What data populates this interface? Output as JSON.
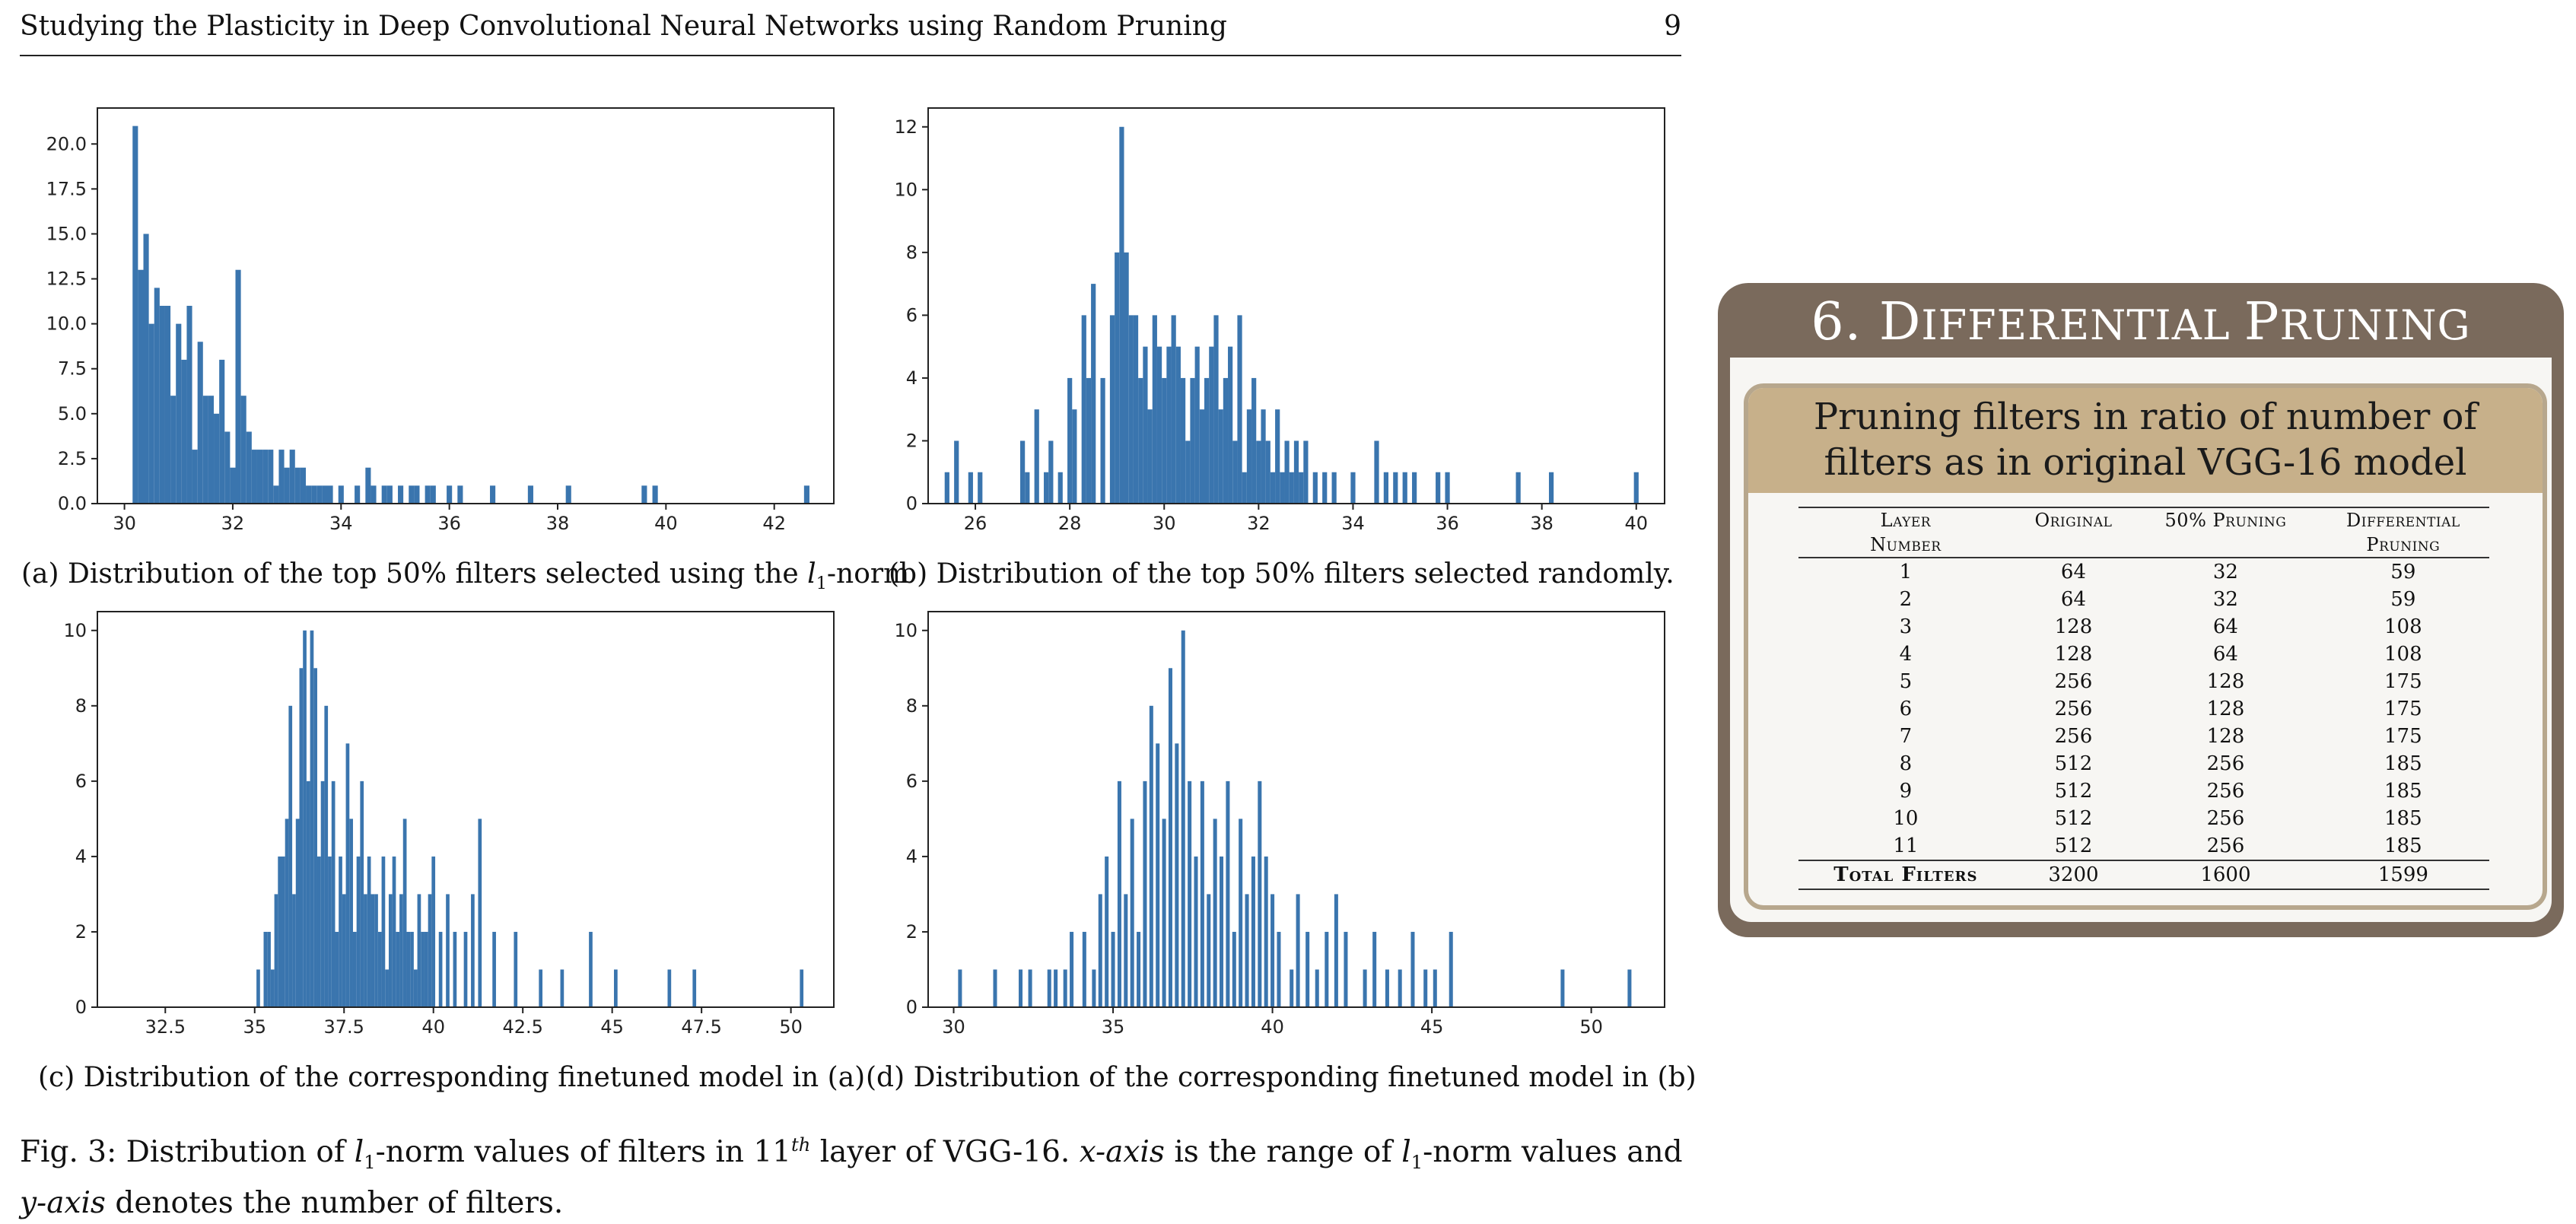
{
  "header": {
    "title": "Studying the Plasticity in Deep Convolutional Neural Networks using Random Pruning",
    "page_number": "9"
  },
  "captions": {
    "a_pre": "(a) Distribution of the top 50% filters selected using the ",
    "a_var": "l",
    "a_sub": "1",
    "a_post": "-norm",
    "b": "(b) Distribution of the top 50% filters selected randomly.",
    "c": "(c) Distribution of the corresponding finetuned model in (a)",
    "d": "(d) Distribution of the corresponding finetuned model in (b)"
  },
  "figure_caption": {
    "p1": "Fig. 3: Distribution of ",
    "l": "l",
    "one": "1",
    "p2": "-norm values of filters in 11",
    "th": "th",
    "p3": " layer of VGG-16. ",
    "xaxis": "x-axis",
    "p4": " is the range of ",
    "p5": "-norm values and ",
    "yaxis": "y-axis",
    "p6": " denotes the number of filters."
  },
  "chart_data": [
    {
      "id": "a",
      "type": "bar",
      "color": "#3a75ae",
      "xlim": [
        29.5,
        43.1
      ],
      "ylim": [
        0,
        22
      ],
      "xticks": [
        30,
        32,
        34,
        36,
        38,
        40,
        42
      ],
      "yticks": [
        0.0,
        2.5,
        5.0,
        7.5,
        10.0,
        12.5,
        15.0,
        17.5,
        20.0
      ],
      "ytick_labels": [
        "0.0",
        "2.5",
        "5.0",
        "7.5",
        "10.0",
        "12.5",
        "15.0",
        "17.5",
        "20.0"
      ],
      "bar_width": 0.1,
      "x": [
        30.2,
        30.3,
        30.4,
        30.5,
        30.6,
        30.7,
        30.8,
        30.9,
        31.0,
        31.1,
        31.2,
        31.3,
        31.4,
        31.5,
        31.6,
        31.7,
        31.8,
        31.9,
        32.0,
        32.1,
        32.2,
        32.3,
        32.4,
        32.5,
        32.6,
        32.7,
        32.8,
        32.9,
        33.0,
        33.1,
        33.2,
        33.3,
        33.4,
        33.5,
        33.6,
        33.7,
        33.8,
        34.0,
        34.3,
        34.5,
        34.6,
        34.8,
        34.9,
        35.1,
        35.3,
        35.4,
        35.6,
        35.7,
        36.0,
        36.2,
        36.8,
        37.5,
        38.2,
        39.6,
        39.8,
        42.6
      ],
      "values": [
        21,
        13,
        15,
        10,
        12,
        11,
        11,
        6,
        10,
        8,
        11,
        3,
        9,
        6,
        6,
        5,
        8,
        4,
        2,
        13,
        6,
        4,
        3,
        3,
        3,
        3,
        1,
        3,
        2,
        3,
        2,
        2,
        1,
        1,
        1,
        1,
        1,
        1,
        1,
        2,
        1,
        1,
        1,
        1,
        1,
        1,
        1,
        1,
        1,
        1,
        1,
        1,
        1,
        1,
        1,
        1
      ]
    },
    {
      "id": "b",
      "type": "bar",
      "color": "#3a75ae",
      "xlim": [
        25.0,
        40.6
      ],
      "ylim": [
        0,
        12.6
      ],
      "xticks": [
        26,
        28,
        30,
        32,
        34,
        36,
        38,
        40
      ],
      "yticks": [
        0,
        2,
        4,
        6,
        8,
        10,
        12
      ],
      "ytick_labels": [
        "0",
        "2",
        "4",
        "6",
        "8",
        "10",
        "12"
      ],
      "bar_width": 0.1,
      "x": [
        25.4,
        25.6,
        25.9,
        26.1,
        27.0,
        27.1,
        27.3,
        27.5,
        27.6,
        27.8,
        28.0,
        28.1,
        28.3,
        28.4,
        28.5,
        28.7,
        28.9,
        29.0,
        29.1,
        29.2,
        29.3,
        29.4,
        29.5,
        29.6,
        29.7,
        29.8,
        29.9,
        30.0,
        30.1,
        30.2,
        30.3,
        30.4,
        30.5,
        30.6,
        30.7,
        30.8,
        30.9,
        31.0,
        31.1,
        31.2,
        31.3,
        31.4,
        31.5,
        31.6,
        31.7,
        31.8,
        31.9,
        32.0,
        32.1,
        32.2,
        32.3,
        32.4,
        32.5,
        32.6,
        32.7,
        32.8,
        32.9,
        33.0,
        33.2,
        33.4,
        33.6,
        34.0,
        34.5,
        34.7,
        34.9,
        35.1,
        35.3,
        35.8,
        36.0,
        37.5,
        38.2,
        40.0
      ],
      "values": [
        1,
        2,
        1,
        1,
        2,
        1,
        3,
        1,
        2,
        1,
        4,
        3,
        6,
        4,
        7,
        4,
        6,
        8,
        12,
        8,
        6,
        6,
        4,
        5,
        3,
        6,
        5,
        4,
        5,
        6,
        5,
        4,
        2,
        4,
        5,
        3,
        4,
        5,
        6,
        3,
        4,
        5,
        2,
        6,
        1,
        3,
        4,
        2,
        3,
        2,
        1,
        3,
        1,
        2,
        1,
        2,
        1,
        2,
        1,
        1,
        1,
        1,
        2,
        1,
        1,
        1,
        1,
        1,
        1,
        1,
        1,
        1
      ]
    },
    {
      "id": "c",
      "type": "bar",
      "color": "#3a75ae",
      "xlim": [
        30.6,
        51.2
      ],
      "ylim": [
        0,
        10.5
      ],
      "xticks": [
        32.5,
        35.0,
        37.5,
        40.0,
        42.5,
        45.0,
        47.5,
        50.0
      ],
      "yticks": [
        0,
        2,
        4,
        6,
        8,
        10
      ],
      "ytick_labels": [
        "0",
        "2",
        "4",
        "6",
        "8",
        "10"
      ],
      "bar_width": 0.1,
      "x": [
        35.1,
        35.3,
        35.4,
        35.5,
        35.6,
        35.7,
        35.8,
        35.9,
        36.0,
        36.1,
        36.2,
        36.3,
        36.4,
        36.5,
        36.6,
        36.7,
        36.8,
        36.9,
        37.0,
        37.1,
        37.2,
        37.3,
        37.4,
        37.5,
        37.6,
        37.7,
        37.8,
        37.9,
        38.0,
        38.1,
        38.2,
        38.3,
        38.4,
        38.5,
        38.6,
        38.7,
        38.8,
        38.9,
        39.0,
        39.1,
        39.2,
        39.3,
        39.4,
        39.5,
        39.6,
        39.7,
        39.8,
        39.9,
        40.0,
        40.2,
        40.4,
        40.6,
        40.9,
        41.1,
        41.3,
        41.7,
        42.3,
        43.0,
        43.6,
        44.4,
        45.1,
        46.6,
        47.3,
        50.3
      ],
      "values": [
        1,
        2,
        2,
        1,
        3,
        4,
        4,
        5,
        8,
        3,
        5,
        9,
        10,
        6,
        10,
        9,
        4,
        6,
        8,
        4,
        6,
        2,
        4,
        3,
        7,
        5,
        2,
        4,
        6,
        3,
        4,
        3,
        3,
        2,
        4,
        1,
        3,
        4,
        2,
        3,
        5,
        2,
        2,
        1,
        3,
        2,
        2,
        3,
        4,
        2,
        3,
        2,
        2,
        3,
        5,
        2,
        2,
        1,
        1,
        2,
        1,
        1,
        1,
        1
      ]
    },
    {
      "id": "d",
      "type": "bar",
      "color": "#3a75ae",
      "xlim": [
        29.2,
        52.3
      ],
      "ylim": [
        0,
        10.5
      ],
      "xticks": [
        30,
        35,
        40,
        45,
        50
      ],
      "yticks": [
        0,
        2,
        4,
        6,
        8,
        10
      ],
      "ytick_labels": [
        "0",
        "2",
        "4",
        "6",
        "8",
        "10"
      ],
      "bar_width": 0.12,
      "x": [
        30.2,
        31.3,
        32.1,
        32.4,
        33.0,
        33.2,
        33.5,
        33.7,
        34.1,
        34.4,
        34.6,
        34.8,
        35.0,
        35.2,
        35.4,
        35.6,
        35.8,
        36.0,
        36.2,
        36.4,
        36.6,
        36.8,
        37.0,
        37.2,
        37.4,
        37.6,
        37.8,
        38.0,
        38.2,
        38.4,
        38.6,
        38.8,
        39.0,
        39.2,
        39.4,
        39.6,
        39.8,
        40.0,
        40.2,
        40.6,
        40.8,
        41.1,
        41.4,
        41.7,
        42.0,
        42.3,
        42.9,
        43.2,
        43.6,
        44.0,
        44.4,
        44.8,
        45.1,
        45.6,
        49.1,
        51.2
      ],
      "values": [
        1,
        1,
        1,
        1,
        1,
        1,
        1,
        2,
        2,
        1,
        3,
        4,
        2,
        6,
        3,
        5,
        2,
        6,
        8,
        7,
        5,
        9,
        7,
        10,
        6,
        4,
        6,
        3,
        5,
        4,
        6,
        2,
        5,
        3,
        4,
        6,
        4,
        3,
        2,
        1,
        3,
        2,
        1,
        2,
        3,
        2,
        1,
        2,
        1,
        1,
        2,
        1,
        1,
        2,
        1,
        1
      ]
    }
  ],
  "panel": {
    "title_num": "6. ",
    "title_d": "D",
    "title_iff": "IFFERENTIAL ",
    "title_p": "P",
    "title_run": "RUNING",
    "subheading_line1": "Pruning filters in ratio of number of",
    "subheading_line2": "filters as in original VGG-16 model",
    "columns": {
      "layer1": "Layer",
      "layer2": "Number",
      "original": "Original",
      "p50": "50% Pruning",
      "diff1": "Differential",
      "diff2": "Pruning"
    },
    "rows": [
      [
        "1",
        "64",
        "32",
        "59"
      ],
      [
        "2",
        "64",
        "32",
        "59"
      ],
      [
        "3",
        "128",
        "64",
        "108"
      ],
      [
        "4",
        "128",
        "64",
        "108"
      ],
      [
        "5",
        "256",
        "128",
        "175"
      ],
      [
        "6",
        "256",
        "128",
        "175"
      ],
      [
        "7",
        "256",
        "128",
        "175"
      ],
      [
        "8",
        "512",
        "256",
        "185"
      ],
      [
        "9",
        "512",
        "256",
        "185"
      ],
      [
        "10",
        "512",
        "256",
        "185"
      ],
      [
        "11",
        "512",
        "256",
        "185"
      ]
    ],
    "total": {
      "label": "Total Filters",
      "original": "3200",
      "p50": "1600",
      "diff": "1599"
    }
  }
}
